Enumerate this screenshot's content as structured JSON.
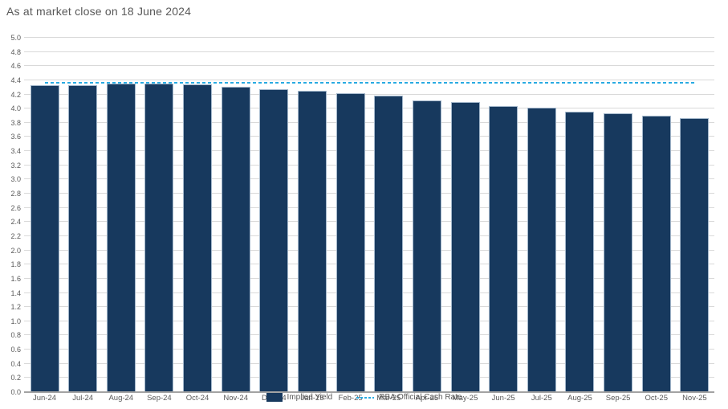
{
  "title": "As at market close on 18 June 2024",
  "colors": {
    "bar_fill": "#17395e",
    "bar_border": "#a3b7cb",
    "cash_rate_line": "#29abe2",
    "gridline": "#d9d9d9",
    "axis_line": "#a3a3a3",
    "text": "#595959"
  },
  "legend": {
    "items": [
      {
        "label": "Implied Yield",
        "type": "bar"
      },
      {
        "label": "RBA Official Cash Rate",
        "type": "dashed-line"
      }
    ]
  },
  "chart_data": {
    "type": "bar",
    "title": "As at market close on 18 June 2024",
    "categories": [
      "Jun-24",
      "Jul-24",
      "Aug-24",
      "Sep-24",
      "Oct-24",
      "Nov-24",
      "Dec-24",
      "Jan-25",
      "Feb-25",
      "Mar-25",
      "Apr-25",
      "May-25",
      "Jun-25",
      "Jul-25",
      "Aug-25",
      "Sep-25",
      "Oct-25",
      "Nov-25"
    ],
    "series": [
      {
        "name": "Implied Yield",
        "type": "bar",
        "values": [
          4.32,
          4.32,
          4.34,
          4.34,
          4.33,
          4.3,
          4.26,
          4.24,
          4.21,
          4.17,
          4.11,
          4.08,
          4.03,
          4.0,
          3.95,
          3.92,
          3.89,
          3.85
        ]
      },
      {
        "name": "RBA Official Cash Rate",
        "type": "horizontal-dashed-line",
        "value": 4.35
      }
    ],
    "xlabel": "",
    "ylabel": "",
    "ylim": [
      0.0,
      5.0
    ],
    "ytick_step": 0.2,
    "ytick_format_decimals": 1,
    "grid": true,
    "legend_position": "bottom"
  }
}
